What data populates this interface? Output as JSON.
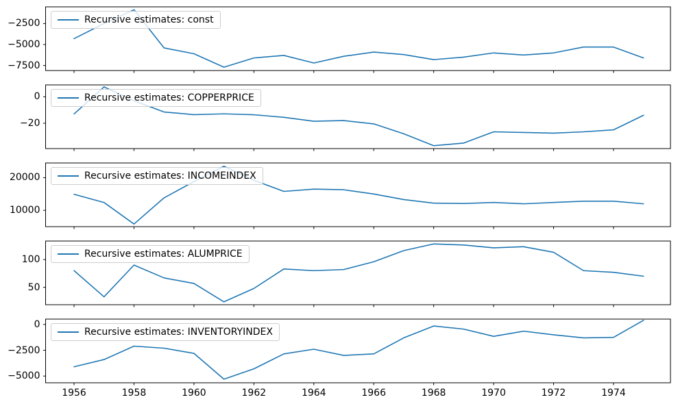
{
  "figure": {
    "background": "#ffffff",
    "line_color": "#1f77b4",
    "axis_color": "#000000",
    "legend_border_color": "#cccccc",
    "x_ticks": [
      1956,
      1958,
      1960,
      1962,
      1964,
      1966,
      1968,
      1970,
      1972,
      1974
    ],
    "xlim": [
      1955.05,
      1975.9
    ]
  },
  "chart_data": [
    {
      "type": "line",
      "param": "const",
      "legend": "Recursive estimates: const",
      "legend_position": "upper left",
      "grid": false,
      "x": [
        1956,
        1957,
        1958,
        1959,
        1960,
        1961,
        1962,
        1963,
        1964,
        1965,
        1966,
        1967,
        1968,
        1969,
        1970,
        1971,
        1972,
        1973,
        1974,
        1975
      ],
      "values": [
        -4300,
        -2500,
        -850,
        -5400,
        -6100,
        -7700,
        -6600,
        -6300,
        -7200,
        -6400,
        -5900,
        -6200,
        -6800,
        -6500,
        -6000,
        -6250,
        -6000,
        -5300,
        -5300,
        -6600
      ],
      "yticks": [
        -2500,
        -5000,
        -7500
      ],
      "ylim": [
        -8100,
        -510
      ],
      "xlim": [
        1955.05,
        1975.9
      ]
    },
    {
      "type": "line",
      "param": "COPPERPRICE",
      "legend": "Recursive estimates: COPPERPRICE",
      "legend_position": "upper left",
      "grid": false,
      "x": [
        1956,
        1957,
        1958,
        1959,
        1960,
        1961,
        1962,
        1963,
        1964,
        1965,
        1966,
        1967,
        1968,
        1969,
        1970,
        1971,
        1972,
        1973,
        1974,
        1975
      ],
      "values": [
        -13,
        7.5,
        -3,
        -11.5,
        -13.5,
        -12.9,
        -13.6,
        -15.5,
        -18.5,
        -18,
        -20.5,
        -28,
        -37,
        -35,
        -26.5,
        -27,
        -27.5,
        -26.5,
        -25,
        -14
      ],
      "yticks": [
        0,
        -20
      ],
      "ylim": [
        -39.2,
        9.0
      ],
      "xlim": [
        1955.05,
        1975.9
      ]
    },
    {
      "type": "line",
      "param": "INCOMEINDEX",
      "legend": "Recursive estimates: INCOMEINDEX",
      "legend_position": "upper left",
      "grid": false,
      "x": [
        1956,
        1957,
        1958,
        1959,
        1960,
        1961,
        1962,
        1963,
        1964,
        1965,
        1966,
        1967,
        1968,
        1969,
        1970,
        1971,
        1972,
        1973,
        1974,
        1975
      ],
      "values": [
        14900,
        12400,
        5800,
        13800,
        18800,
        23500,
        19200,
        15800,
        16500,
        16300,
        15000,
        13300,
        12200,
        12100,
        12400,
        12000,
        12400,
        12800,
        12800,
        12000
      ],
      "yticks": [
        20000,
        10000
      ],
      "ylim": [
        5000,
        24500
      ],
      "xlim": [
        1955.05,
        1975.9
      ]
    },
    {
      "type": "line",
      "param": "ALUMPRICE",
      "legend": "Recursive estimates: ALUMPRICE",
      "legend_position": "upper left",
      "grid": false,
      "x": [
        1956,
        1957,
        1958,
        1959,
        1960,
        1961,
        1962,
        1963,
        1964,
        1965,
        1966,
        1967,
        1968,
        1969,
        1970,
        1971,
        1972,
        1973,
        1974,
        1975
      ],
      "values": [
        80,
        33,
        90,
        67,
        57,
        24,
        48,
        83,
        80,
        82,
        96,
        116,
        128,
        126,
        121,
        123,
        113,
        80,
        77,
        70
      ],
      "yticks": [
        100,
        50
      ],
      "ylim": [
        18.8,
        133.2
      ],
      "xlim": [
        1955.05,
        1975.9
      ]
    },
    {
      "type": "line",
      "param": "INVENTORYINDEX",
      "legend": "Recursive estimates: INVENTORYINDEX",
      "legend_position": "upper left",
      "grid": false,
      "x": [
        1956,
        1957,
        1958,
        1959,
        1960,
        1961,
        1962,
        1963,
        1964,
        1965,
        1966,
        1967,
        1968,
        1969,
        1970,
        1971,
        1972,
        1973,
        1974,
        1975
      ],
      "values": [
        -4100,
        -3400,
        -2100,
        -2300,
        -2800,
        -5300,
        -4300,
        -2850,
        -2400,
        -3000,
        -2850,
        -1300,
        -150,
        -450,
        -1150,
        -650,
        -1000,
        -1300,
        -1250,
        400
      ],
      "yticks": [
        0,
        -2500,
        -5000
      ],
      "ylim": [
        -5650,
        520
      ],
      "xlim": [
        1955.05,
        1975.9
      ]
    }
  ]
}
